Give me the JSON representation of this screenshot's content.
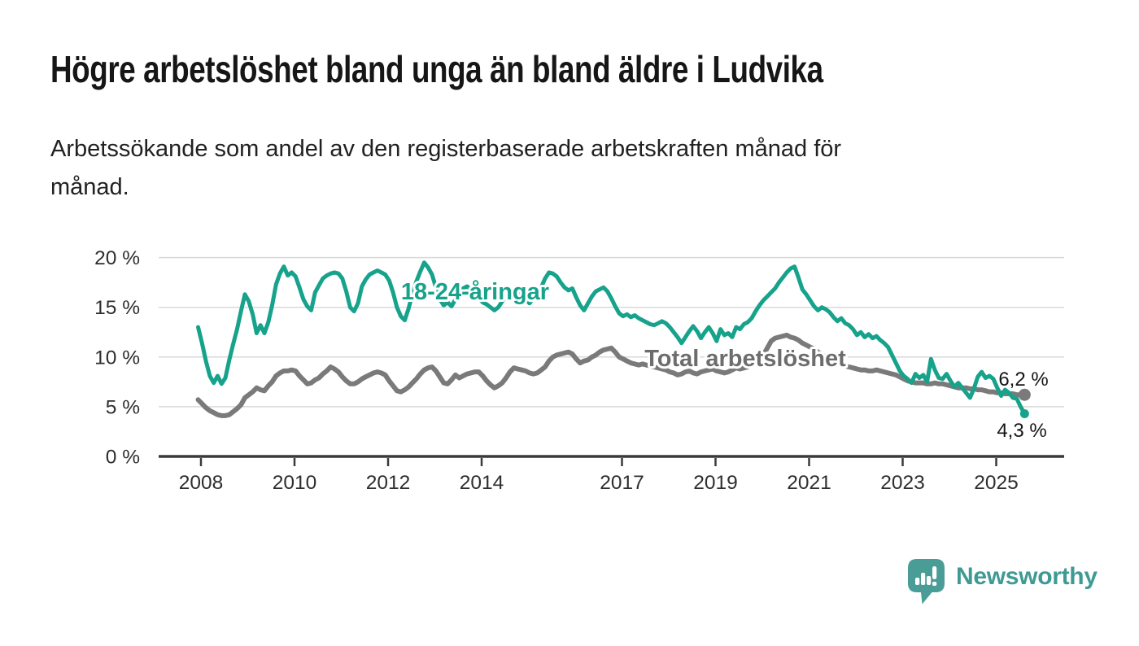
{
  "title": "Högre arbetslöshet bland unga än bland äldre i Ludvika",
  "subtitle": {
    "line1": "Arbetssökande som andel av den registerbaserade arbetskraften månad för",
    "line2": "månad."
  },
  "branding": {
    "name": "Newsworthy",
    "icon": "newsworthy-speech-bubble-bar-chart-icon",
    "brand_color": "#3f9a94",
    "icon_color": "#4a9d97"
  },
  "colors": {
    "youth_line": "#17a28b",
    "total_line": "#7a7a7a",
    "youth_label": "#17a28b",
    "total_label": "#6d6d6d",
    "grid": "#d9d9d9",
    "axis": "#3a3a3a",
    "tick_text": "#2e2e2e",
    "value_text": "#161616",
    "background": "#ffffff"
  },
  "chart_data": {
    "type": "line",
    "title": "Högre arbetslöshet bland unga än bland äldre i Ludvika",
    "subtitle": "Arbetssökande som andel av den registerbaserade arbetskraften månad för månad.",
    "xlabel": "",
    "ylabel": "",
    "x_unit": "month",
    "x_start": "2008-01",
    "x_end": "2025-09",
    "ylim": [
      0,
      20
    ],
    "grid": true,
    "legend_position": "inline-labels",
    "y_ticks": [
      {
        "value": 0,
        "label": "0 %"
      },
      {
        "value": 5,
        "label": "5 %"
      },
      {
        "value": 10,
        "label": "10 %"
      },
      {
        "value": 15,
        "label": "15 %"
      },
      {
        "value": 20,
        "label": "20 %"
      }
    ],
    "x_ticks": [
      {
        "year": 2008,
        "label": "2008"
      },
      {
        "year": 2010,
        "label": "2010"
      },
      {
        "year": 2012,
        "label": "2012"
      },
      {
        "year": 2014,
        "label": "2014"
      },
      {
        "year": 2017,
        "label": "2017"
      },
      {
        "year": 2019,
        "label": "2019"
      },
      {
        "year": 2021,
        "label": "2021"
      },
      {
        "year": 2023,
        "label": "2023"
      },
      {
        "year": 2025,
        "label": "2025"
      }
    ],
    "series": [
      {
        "id": "youth",
        "name": "18-24-åringar",
        "line_label": "18-24-åringar",
        "end_value": 4.3,
        "end_value_label": "4,3 %",
        "color": "#17a28b",
        "values": [
          13.0,
          11.4,
          9.6,
          8.1,
          7.4,
          8.1,
          7.3,
          7.9,
          9.7,
          11.3,
          12.8,
          14.6,
          16.3,
          15.6,
          14.3,
          12.4,
          13.2,
          12.4,
          13.5,
          15.2,
          17.3,
          18.4,
          19.1,
          18.2,
          18.5,
          18.1,
          17.0,
          15.8,
          15.1,
          14.7,
          16.5,
          17.2,
          17.9,
          18.2,
          18.4,
          18.5,
          18.4,
          17.9,
          16.6,
          15.0,
          14.6,
          15.4,
          17.1,
          17.8,
          18.3,
          18.5,
          18.7,
          18.5,
          18.3,
          17.7,
          16.5,
          15.0,
          14.1,
          13.7,
          14.9,
          16.4,
          17.6,
          18.6,
          19.5,
          19.0,
          18.3,
          17.0,
          15.8,
          15.2,
          15.5,
          15.1,
          15.8,
          16.4,
          16.9,
          17.1,
          16.8,
          16.2,
          15.9,
          15.5,
          15.3,
          15.0,
          14.7,
          15.0,
          15.6,
          16.1,
          16.4,
          16.2,
          16.5,
          16.1,
          15.8,
          15.4,
          15.9,
          16.4,
          17.0,
          17.9,
          18.5,
          18.4,
          18.1,
          17.5,
          17.0,
          16.7,
          16.9,
          16.0,
          15.2,
          14.7,
          15.4,
          16.1,
          16.6,
          16.8,
          17.0,
          16.6,
          15.9,
          15.1,
          14.4,
          14.1,
          14.3,
          14.0,
          14.2,
          13.9,
          13.7,
          13.5,
          13.3,
          13.2,
          13.4,
          13.6,
          13.4,
          13.0,
          12.5,
          12.0,
          11.4,
          12.0,
          12.6,
          13.1,
          12.6,
          11.9,
          12.5,
          13.0,
          12.4,
          11.6,
          12.8,
          12.2,
          12.4,
          12.0,
          13.0,
          12.8,
          13.3,
          13.5,
          13.9,
          14.6,
          15.2,
          15.7,
          16.1,
          16.5,
          16.9,
          17.5,
          18.0,
          18.5,
          18.9,
          19.1,
          18.0,
          16.8,
          16.3,
          15.7,
          15.1,
          14.7,
          15.0,
          14.8,
          14.5,
          14.0,
          13.6,
          13.9,
          13.4,
          13.2,
          12.8,
          12.2,
          12.5,
          12.0,
          12.3,
          11.9,
          12.1,
          11.7,
          11.4,
          11.0,
          10.2,
          9.4,
          8.6,
          8.1,
          7.8,
          7.4,
          8.3,
          7.9,
          8.2,
          7.5,
          9.8,
          8.7,
          7.9,
          7.8,
          8.3,
          7.6,
          7.0,
          7.4,
          6.9,
          6.4,
          5.9,
          6.8,
          8.0,
          8.5,
          7.9,
          8.1,
          7.8,
          6.9,
          6.1,
          6.7,
          6.4,
          5.9,
          5.8,
          5.0,
          4.3
        ]
      },
      {
        "id": "total",
        "name": "Total arbetslöshet",
        "line_label": "Total arbetslöshet",
        "end_value": 6.2,
        "end_value_label": "6,2 %",
        "color": "#7a7a7a",
        "values": [
          5.7,
          5.3,
          4.9,
          4.6,
          4.4,
          4.2,
          4.1,
          4.1,
          4.2,
          4.5,
          4.8,
          5.2,
          5.9,
          6.2,
          6.5,
          6.9,
          6.7,
          6.6,
          7.1,
          7.5,
          8.1,
          8.4,
          8.6,
          8.6,
          8.7,
          8.6,
          8.1,
          7.7,
          7.3,
          7.4,
          7.7,
          7.9,
          8.3,
          8.6,
          9.0,
          8.8,
          8.5,
          8.0,
          7.6,
          7.3,
          7.3,
          7.5,
          7.8,
          8.0,
          8.2,
          8.4,
          8.5,
          8.4,
          8.2,
          7.6,
          7.1,
          6.6,
          6.5,
          6.7,
          7.0,
          7.4,
          7.8,
          8.3,
          8.7,
          8.9,
          9.0,
          8.6,
          8.0,
          7.4,
          7.3,
          7.7,
          8.2,
          7.9,
          8.1,
          8.3,
          8.4,
          8.5,
          8.5,
          8.1,
          7.6,
          7.2,
          6.9,
          7.1,
          7.4,
          7.9,
          8.5,
          8.9,
          8.8,
          8.7,
          8.6,
          8.4,
          8.3,
          8.4,
          8.7,
          9.0,
          9.6,
          10.0,
          10.2,
          10.3,
          10.4,
          10.5,
          10.3,
          9.8,
          9.4,
          9.6,
          9.7,
          10.0,
          10.2,
          10.5,
          10.7,
          10.8,
          10.9,
          10.5,
          10.0,
          9.8,
          9.6,
          9.4,
          9.3,
          9.2,
          9.3,
          9.2,
          9.1,
          9.0,
          8.9,
          8.8,
          8.7,
          8.5,
          8.4,
          8.2,
          8.3,
          8.5,
          8.6,
          8.4,
          8.3,
          8.5,
          8.6,
          8.7,
          8.8,
          8.6,
          8.5,
          8.4,
          8.5,
          8.7,
          8.9,
          8.8,
          8.9,
          9.0,
          9.2,
          9.5,
          9.8,
          10.2,
          10.9,
          11.6,
          11.9,
          12.0,
          12.1,
          12.2,
          12.0,
          11.9,
          11.7,
          11.4,
          11.2,
          11.0,
          10.8,
          10.5,
          10.2,
          10.0,
          9.8,
          9.6,
          9.4,
          9.2,
          9.1,
          9.0,
          8.9,
          8.8,
          8.7,
          8.7,
          8.6,
          8.6,
          8.7,
          8.6,
          8.5,
          8.4,
          8.3,
          8.2,
          8.0,
          7.8,
          7.6,
          7.5,
          7.4,
          7.4,
          7.4,
          7.3,
          7.3,
          7.4,
          7.3,
          7.3,
          7.2,
          7.1,
          7.0,
          6.9,
          6.9,
          6.9,
          6.8,
          6.8,
          6.7,
          6.7,
          6.6,
          6.5,
          6.5,
          6.4,
          6.4,
          6.3,
          6.3,
          6.3,
          6.2,
          6.2,
          6.2
        ]
      }
    ]
  }
}
